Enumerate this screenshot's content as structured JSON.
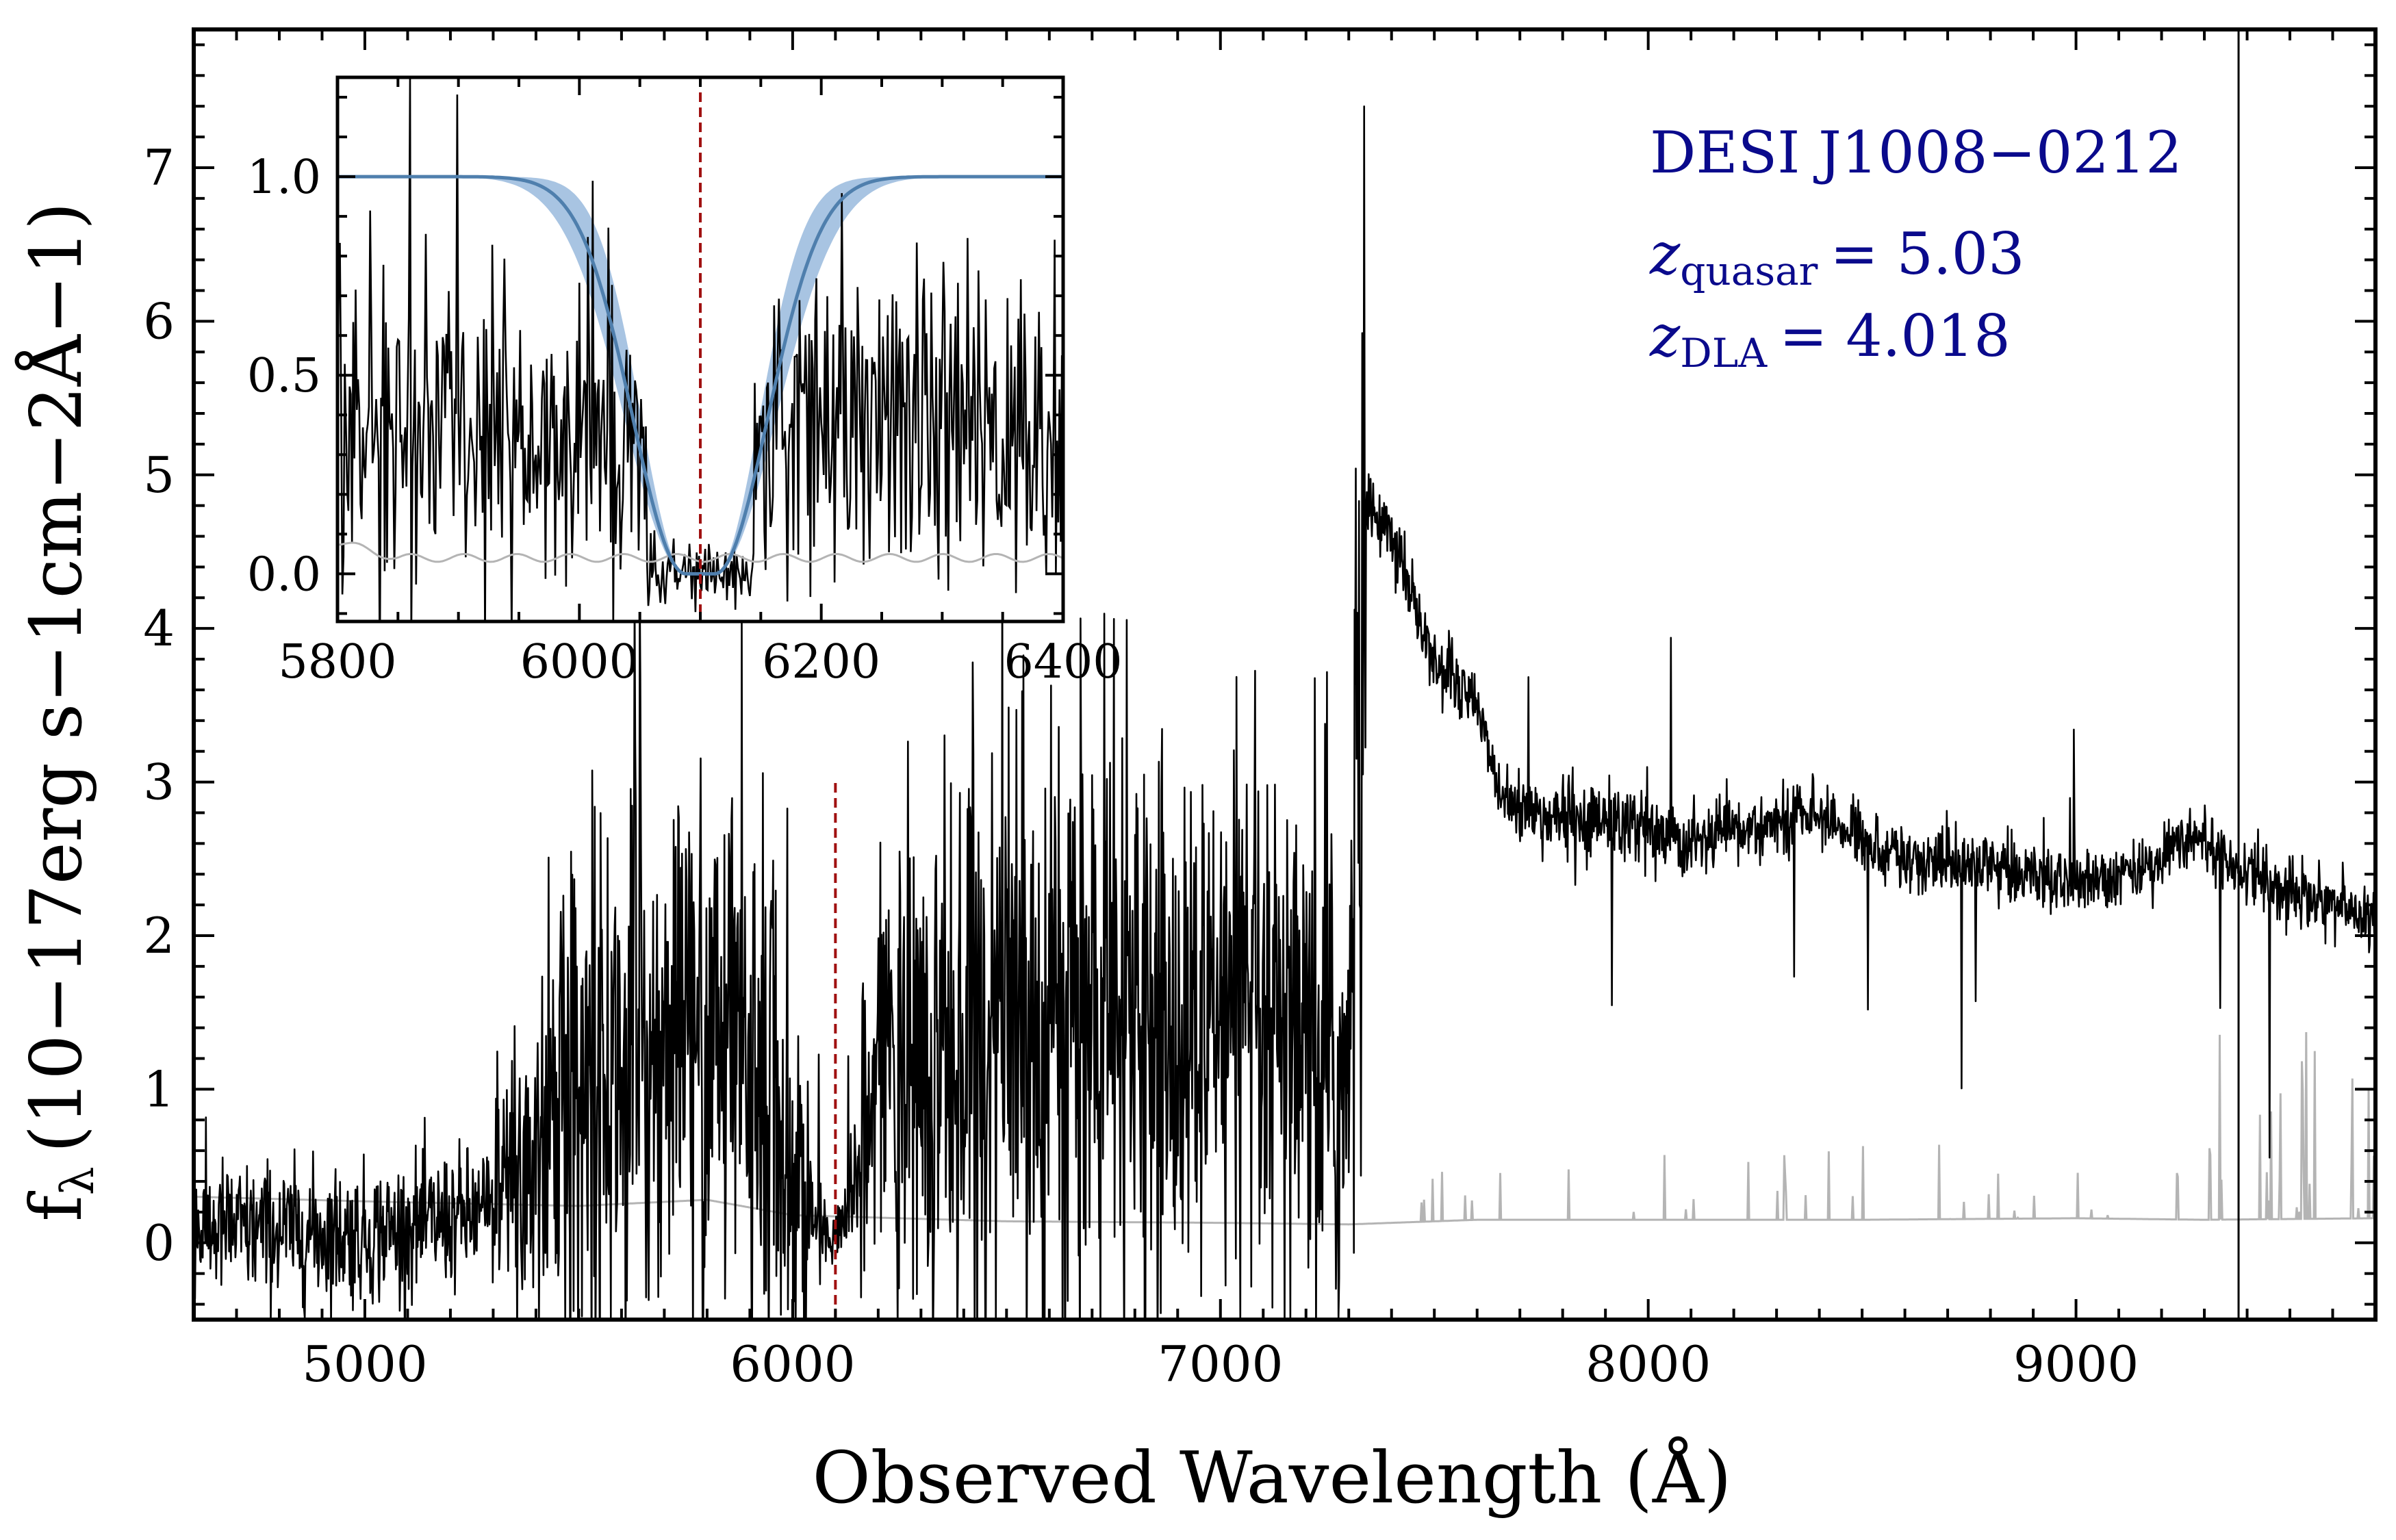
{
  "chart_data": [
    {
      "id": "main",
      "type": "line",
      "title": "",
      "xlabel": "Observed Wavelength (Å)",
      "ylabel": "f",
      "ylabel_sub": "λ",
      "ylabel_units": "(10−17erg s−1cm−2Å−1)",
      "xlim": [
        4600,
        9700
      ],
      "ylim": [
        -0.5,
        7.9
      ],
      "xticks": [
        5000,
        6000,
        7000,
        8000,
        9000
      ],
      "yticks": [
        0,
        1,
        2,
        3,
        4,
        5,
        6,
        7
      ],
      "grid": false,
      "series": [
        {
          "name": "flux",
          "color": "#000000",
          "sampled_points": [
            [
              4600,
              0.1
            ],
            [
              5000,
              0.05
            ],
            [
              5300,
              0.2
            ],
            [
              5500,
              1.0
            ],
            [
              5700,
              1.3
            ],
            [
              5900,
              1.2
            ],
            [
              6050,
              0.1
            ],
            [
              6120,
              0.05
            ],
            [
              6200,
              1.0
            ],
            [
              6500,
              1.4
            ],
            [
              7000,
              1.3
            ],
            [
              7300,
              1.0
            ],
            [
              7340,
              4.8
            ],
            [
              7400,
              4.6
            ],
            [
              7500,
              3.8
            ],
            [
              7600,
              3.5
            ],
            [
              7650,
              3.0
            ],
            [
              7700,
              2.8
            ],
            [
              7900,
              2.75
            ],
            [
              8100,
              2.6
            ],
            [
              8400,
              2.8
            ],
            [
              8600,
              2.5
            ],
            [
              8800,
              2.45
            ],
            [
              9000,
              2.35
            ],
            [
              9200,
              2.5
            ],
            [
              9270,
              2.7
            ],
            [
              9300,
              2.6
            ],
            [
              9500,
              2.3
            ],
            [
              9700,
              2.1
            ]
          ]
        },
        {
          "name": "error",
          "color": "#b4b4b4",
          "sampled_points": [
            [
              4600,
              0.3
            ],
            [
              5000,
              0.27
            ],
            [
              5500,
              0.24
            ],
            [
              5800,
              0.28
            ],
            [
              6000,
              0.18
            ],
            [
              6500,
              0.14
            ],
            [
              7000,
              0.13
            ],
            [
              7300,
              0.12
            ],
            [
              7600,
              0.15
            ],
            [
              8000,
              0.15
            ],
            [
              8500,
              0.15
            ],
            [
              9000,
              0.16
            ],
            [
              9300,
              0.15
            ],
            [
              9700,
              0.16
            ]
          ]
        }
      ],
      "markers": {
        "dla_line_x": 6100,
        "dla_line_color": "#a01010",
        "dla_line_ymax": 3.0,
        "vertical_line_x": 9380
      },
      "annotations": {
        "object_name": "DESI J1008−0212",
        "z_quasar_symbol": "z",
        "z_quasar_sub": "quasar",
        "z_quasar_value": "= 5.03",
        "z_dla_symbol": "z",
        "z_dla_sub": "DLA",
        "z_dla_value": "= 4.018",
        "color": "#0a0a8c"
      }
    },
    {
      "id": "inset",
      "type": "line",
      "title": "",
      "xlabel": "",
      "ylabel": "",
      "xlim": [
        5800,
        6400
      ],
      "ylim": [
        -0.12,
        1.25
      ],
      "xticks": [
        5800,
        6000,
        6200,
        6400
      ],
      "yticks": [
        0.0,
        0.5,
        1.0
      ],
      "ytick_labels": [
        "0.0",
        "0.5",
        "1.0"
      ],
      "grid": false,
      "dla_center": 6100,
      "model_core_halfwidth": 12,
      "model_damping_width": 62,
      "band_width_inner": 52,
      "band_width_outer": 72,
      "series": [
        {
          "name": "normalized flux",
          "color": "#000000"
        },
        {
          "name": "DLA model",
          "color": "#4f7fad"
        },
        {
          "name": "model uncertainty",
          "color": "#a8c4e2"
        },
        {
          "name": "error",
          "color": "#b4b4b4"
        }
      ]
    }
  ]
}
